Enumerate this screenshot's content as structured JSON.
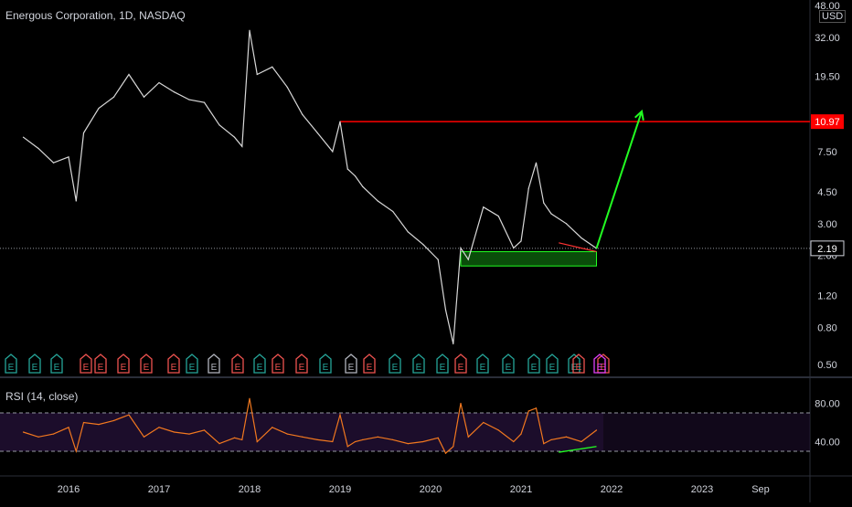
{
  "title": "Energous Corporation, 1D, NASDAQ",
  "currency": "USD",
  "rsi_title": "RSI (14, close)",
  "colors": {
    "background": "#000000",
    "price_line": "#d8d8d8",
    "resistance": "#ff0000",
    "support_box_fill": "#0a4d0a",
    "support_box_stroke": "#22ff22",
    "arrow": "#22ff22",
    "rsi_line": "#f2781f",
    "rsi_band": "#1c0d2b",
    "earnings_green": "#26a69a",
    "earnings_red": "#ef5350",
    "earnings_grey": "#b2b5be",
    "earnings_purple": "#e040fb"
  },
  "chart_data": [
    {
      "type": "line",
      "name": "price",
      "y_scale": "log",
      "y_ticks": [
        "48.00",
        "32.00",
        "19.50",
        "10.97",
        "7.50",
        "4.50",
        "3.00",
        "2.19",
        "2.00",
        "1.20",
        "0.80",
        "0.50"
      ],
      "x_ticks": [
        "2016",
        "2017",
        "2018",
        "2019",
        "2020",
        "2021",
        "2022",
        "2023",
        "Sep"
      ],
      "last_price_label": "2.19",
      "resistance_label": "10.97",
      "resistance_level": 10.97,
      "last_price": 2.19,
      "support_zone": {
        "low": 1.75,
        "high": 2.1,
        "from": "2020-05",
        "to": "2021-11"
      },
      "projection_arrow": {
        "from": [
          "2021-11",
          2.19
        ],
        "to": [
          "2022-05",
          12.5
        ]
      },
      "divergence_line": {
        "from": [
          "2021-06",
          2.35
        ],
        "to": [
          "2021-11",
          2.1
        ],
        "color": "#ff3333"
      },
      "series": [
        {
          "x": [
            "2015-07",
            "2015-09",
            "2015-11",
            "2016-01",
            "2016-02",
            "2016-03",
            "2016-05",
            "2016-07",
            "2016-09",
            "2016-11",
            "2017-01",
            "2017-03",
            "2017-05",
            "2017-07",
            "2017-09",
            "2017-11",
            "2017-12",
            "2018-01",
            "2018-02",
            "2018-04",
            "2018-06",
            "2018-08",
            "2018-10",
            "2018-12",
            "2019-01",
            "2019-02",
            "2019-03",
            "2019-04",
            "2019-06",
            "2019-08",
            "2019-10",
            "2019-12",
            "2020-02",
            "2020-03",
            "2020-04",
            "2020-05",
            "2020-06",
            "2020-08",
            "2020-10",
            "2020-12",
            "2021-01",
            "2021-02",
            "2021-03",
            "2021-04",
            "2021-05",
            "2021-07",
            "2021-09",
            "2021-11"
          ],
          "y": [
            9.0,
            7.8,
            6.5,
            7.0,
            4.0,
            9.5,
            13.0,
            15.0,
            20.0,
            15.0,
            18.0,
            16.0,
            14.5,
            14.0,
            10.5,
            9.0,
            8.0,
            35.0,
            20.0,
            22.0,
            17.0,
            12.0,
            9.5,
            7.5,
            10.97,
            6.0,
            5.5,
            4.8,
            4.0,
            3.5,
            2.7,
            2.3,
            1.9,
            1.0,
            0.65,
            2.2,
            1.9,
            3.7,
            3.3,
            2.2,
            2.4,
            4.7,
            6.5,
            3.9,
            3.4,
            3.0,
            2.5,
            2.19
          ]
        }
      ]
    },
    {
      "type": "line",
      "name": "RSI (14, close)",
      "y_ticks": [
        "80.00",
        "40.00"
      ],
      "band": [
        30,
        70
      ],
      "divergence_line": {
        "from": [
          "2021-06",
          29
        ],
        "to": [
          "2021-11",
          35
        ],
        "color": "#22ff22"
      },
      "series": [
        {
          "x": [
            "2015-07",
            "2015-09",
            "2015-11",
            "2016-01",
            "2016-02",
            "2016-03",
            "2016-05",
            "2016-07",
            "2016-09",
            "2016-11",
            "2017-01",
            "2017-03",
            "2017-05",
            "2017-07",
            "2017-09",
            "2017-11",
            "2017-12",
            "2018-01",
            "2018-02",
            "2018-04",
            "2018-06",
            "2018-08",
            "2018-10",
            "2018-12",
            "2019-01",
            "2019-02",
            "2019-03",
            "2019-04",
            "2019-06",
            "2019-08",
            "2019-10",
            "2019-12",
            "2020-02",
            "2020-03",
            "2020-04",
            "2020-05",
            "2020-06",
            "2020-08",
            "2020-10",
            "2020-12",
            "2021-01",
            "2021-02",
            "2021-03",
            "2021-04",
            "2021-05",
            "2021-07",
            "2021-09",
            "2021-11"
          ],
          "y": [
            50,
            45,
            48,
            55,
            30,
            60,
            58,
            62,
            68,
            45,
            55,
            50,
            48,
            52,
            38,
            44,
            42,
            85,
            40,
            55,
            48,
            45,
            42,
            40,
            68,
            35,
            40,
            42,
            45,
            42,
            38,
            40,
            44,
            28,
            35,
            80,
            45,
            60,
            52,
            40,
            48,
            72,
            75,
            38,
            42,
            45,
            40,
            52
          ]
        }
      ]
    }
  ],
  "earnings_markers": [
    {
      "letter": "E",
      "kind": "green"
    },
    {
      "letter": "E",
      "kind": "green"
    },
    {
      "letter": "E",
      "kind": "green"
    },
    {
      "letter": "E",
      "kind": "red"
    },
    {
      "letter": "E",
      "kind": "red"
    },
    {
      "letter": "E",
      "kind": "red"
    },
    {
      "letter": "E",
      "kind": "red"
    },
    {
      "letter": "E",
      "kind": "red"
    },
    {
      "letter": "E",
      "kind": "green"
    },
    {
      "letter": "E",
      "kind": "grey"
    },
    {
      "letter": "E",
      "kind": "red"
    },
    {
      "letter": "E",
      "kind": "green"
    },
    {
      "letter": "E",
      "kind": "red"
    },
    {
      "letter": "E",
      "kind": "red"
    },
    {
      "letter": "E",
      "kind": "green"
    },
    {
      "letter": "E",
      "kind": "grey"
    },
    {
      "letter": "E",
      "kind": "red"
    },
    {
      "letter": "E",
      "kind": "green"
    },
    {
      "letter": "E",
      "kind": "green"
    },
    {
      "letter": "E",
      "kind": "green"
    },
    {
      "letter": "E",
      "kind": "red"
    },
    {
      "letter": "E",
      "kind": "green"
    },
    {
      "letter": "E",
      "kind": "green"
    },
    {
      "letter": "E",
      "kind": "green"
    },
    {
      "letter": "E",
      "kind": "green"
    },
    {
      "letter": "E",
      "kind": "green"
    },
    {
      "letter": "E",
      "kind": "red"
    },
    {
      "letter": "E",
      "kind": "red"
    },
    {
      "letter": "E",
      "kind": "purple"
    }
  ]
}
